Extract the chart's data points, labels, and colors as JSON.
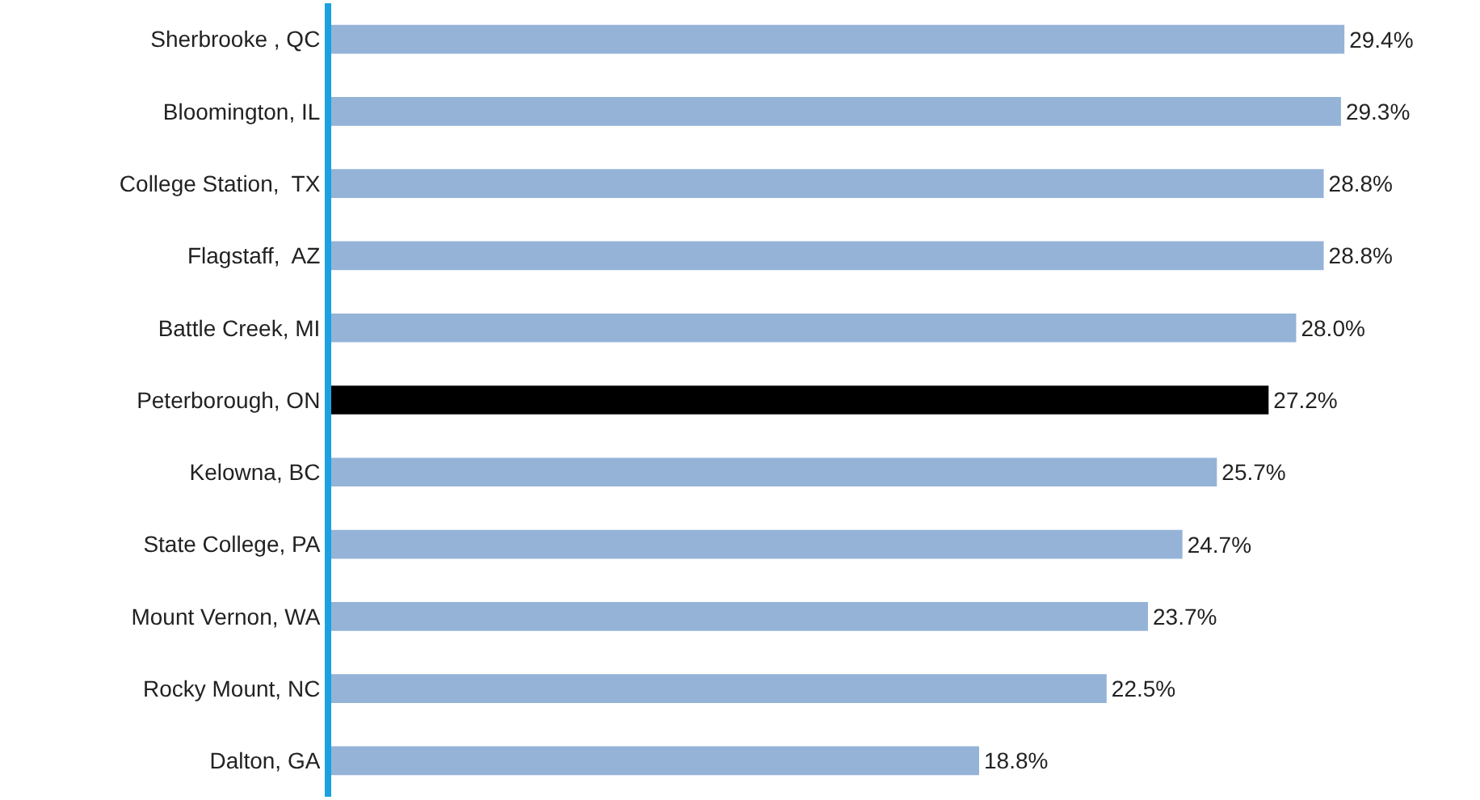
{
  "chart_data": {
    "type": "bar",
    "orientation": "horizontal",
    "categories": [
      "Sherbrooke , QC",
      "Bloomington, IL",
      "College Station,  TX",
      "Flagstaff,  AZ",
      "Battle Creek, MI",
      "Peterborough, ON",
      "Kelowna, BC",
      "State College, PA",
      "Mount Vernon, WA",
      "Rocky Mount, NC",
      "Dalton, GA"
    ],
    "values": [
      29.4,
      29.3,
      28.8,
      28.8,
      28.0,
      27.2,
      25.7,
      24.7,
      23.7,
      22.5,
      18.8
    ],
    "value_labels": [
      "29.4%",
      "29.3%",
      "28.8%",
      "28.8%",
      "28.0%",
      "27.2%",
      "25.7%",
      "24.7%",
      "23.7%",
      "22.5%",
      "18.8%"
    ],
    "colors": [
      "#95b3d7",
      "#95b3d7",
      "#95b3d7",
      "#95b3d7",
      "#95b3d7",
      "#000000",
      "#95b3d7",
      "#95b3d7",
      "#95b3d7",
      "#95b3d7",
      "#95b3d7"
    ],
    "xlim": [
      0,
      33.1
    ],
    "tick_labels": "y"
  }
}
